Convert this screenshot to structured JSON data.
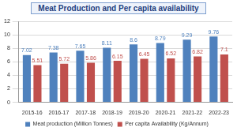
{
  "chart_data": {
    "type": "bar",
    "title": "Meat Production and Per capita availability",
    "categories": [
      "2015-16",
      "2016-17",
      "2017-18",
      "2018-19",
      "2019-20",
      "2020-21",
      "2021-22",
      "2022-23"
    ],
    "series": [
      {
        "name": "Meat production (Million Tonnes)",
        "color": "#4f81bd",
        "values": [
          7.02,
          7.38,
          7.65,
          8.11,
          8.6,
          8.79,
          9.29,
          9.76
        ]
      },
      {
        "name": "Per capita Availability (Kg/Annum)",
        "color": "#c0504d",
        "values": [
          5.51,
          5.72,
          5.86,
          6.15,
          6.45,
          6.52,
          6.82,
          7.1
        ]
      }
    ],
    "ylim": [
      0,
      12
    ],
    "yticks": [
      0,
      2,
      4,
      6,
      8,
      10,
      12
    ],
    "grid": true,
    "legend": "bottom",
    "data_labels": true
  }
}
